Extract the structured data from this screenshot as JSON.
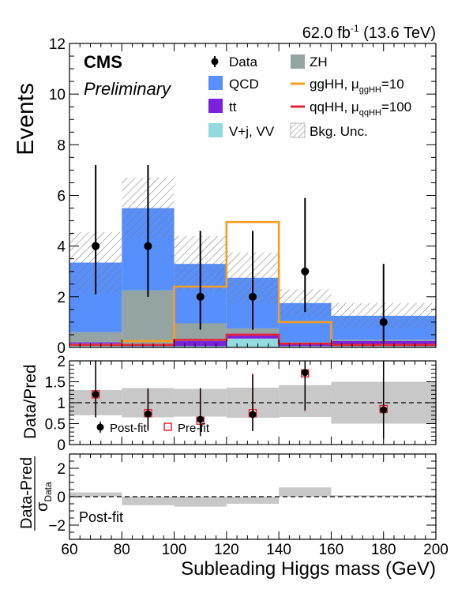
{
  "header": {
    "lumi": "62.0 fb",
    "lumi_exp": "-1",
    "energy": "(13.6 TeV)",
    "experiment": "CMS",
    "status": "Preliminary"
  },
  "colors": {
    "qcd": "#5790fc",
    "zh": "#94a4a2",
    "tt": "#7a21dd",
    "vjets": "#92dadd",
    "gghh": "#f89c20",
    "qqhh": "#e42536",
    "unc": "#9a9a9a",
    "ratio_band": "#c8c8c8"
  },
  "legend": {
    "data": "Data",
    "qcd": "QCD",
    "tt": "tt",
    "vjets": "V+j, VV",
    "zh": "ZH",
    "gghh_main": "ggHH, μ",
    "gghh_sub": "ggHH",
    "gghh_val": "=10",
    "qqhh_main": "qqHH, μ",
    "qqhh_sub": "qqHH",
    "qqhh_val": "=100",
    "unc": "Bkg. Unc."
  },
  "chart_data": [
    {
      "type": "bar",
      "panel": "main",
      "ylabel": "Events",
      "ylim": [
        0,
        12
      ],
      "yticks": [
        "0",
        "2",
        "4",
        "6",
        "8",
        "10",
        "12"
      ],
      "bin_edges": [
        60,
        80,
        100,
        120,
        140,
        160,
        200
      ],
      "stack": [
        {
          "name": "V+j, VV",
          "values": [
            0.15,
            0.05,
            0.05,
            0.35,
            0.05,
            0.05
          ]
        },
        {
          "name": "tt",
          "values": [
            0.05,
            0.05,
            0.2,
            0.2,
            0.1,
            0.2
          ]
        },
        {
          "name": "ZH",
          "values": [
            0.4,
            2.15,
            0.7,
            0.2,
            0.05,
            0.05
          ]
        },
        {
          "name": "QCD",
          "values": [
            2.75,
            3.25,
            2.35,
            2.0,
            1.55,
            0.95
          ]
        }
      ],
      "bkg_unc": [
        1.2,
        1.2,
        1.1,
        1.0,
        0.55,
        0.5
      ],
      "signals": [
        {
          "name": "ggHH",
          "values": [
            0.1,
            0.25,
            2.4,
            4.95,
            1.0,
            0.1
          ]
        },
        {
          "name": "qqHH",
          "values": [
            0.1,
            0.1,
            0.3,
            0.5,
            0.15,
            0.1
          ]
        }
      ],
      "data": {
        "x": [
          70,
          90,
          110,
          130,
          150,
          180
        ],
        "y": [
          4,
          4,
          2,
          2,
          3,
          1
        ],
        "err_lo": [
          1.9,
          2.0,
          1.3,
          1.3,
          1.6,
          0.8
        ],
        "err_hi": [
          3.2,
          3.2,
          2.6,
          2.6,
          2.9,
          2.3
        ]
      }
    },
    {
      "type": "scatter",
      "panel": "ratio",
      "ylabel": "Data/Pred",
      "ylim": [
        0,
        2
      ],
      "yticks": [
        "0",
        "0.5",
        "1",
        "1.5",
        "2"
      ],
      "reference_line": 1,
      "band": [
        [
          0.7,
          1.3
        ],
        [
          0.65,
          1.35
        ],
        [
          0.67,
          1.33
        ],
        [
          0.64,
          1.36
        ],
        [
          0.66,
          1.42
        ],
        [
          0.5,
          1.5
        ]
      ],
      "postfit": {
        "label": "Post-fit",
        "x": [
          70,
          90,
          110,
          130,
          150,
          180
        ],
        "y": [
          1.2,
          0.73,
          0.6,
          0.72,
          1.72,
          0.83
        ],
        "err_lo": [
          0.55,
          0.4,
          0.4,
          0.4,
          0.9,
          0.7
        ],
        "err_hi": [
          0.8,
          0.6,
          0.75,
          0.95,
          1.1,
          1.3
        ]
      },
      "prefit": {
        "label": "Pre-fit",
        "x": [
          70,
          90,
          110,
          130,
          150,
          180
        ],
        "y": [
          1.2,
          0.75,
          0.57,
          0.75,
          1.7,
          0.85
        ],
        "err_lo": [
          0.55,
          0.4,
          0.35,
          0.4,
          0.9,
          0.7
        ],
        "err_hi": [
          0.8,
          0.6,
          0.75,
          0.95,
          1.1,
          1.3
        ]
      }
    },
    {
      "type": "bar",
      "panel": "pull",
      "ylabel_num": "Data-Pred",
      "ylabel_den": "σ",
      "ylabel_den_sub": "Data",
      "ylim": [
        -3,
        3
      ],
      "yticks": [
        "−2",
        "0",
        "2"
      ],
      "reference_line": 0,
      "band_values": [
        0.3,
        -0.6,
        -0.7,
        -0.5,
        0.65,
        0.1
      ],
      "annotation": "Post-fit"
    }
  ],
  "xaxis": {
    "label": "Subleading Higgs mass (GeV)",
    "range": [
      60,
      200
    ],
    "ticks": [
      "60",
      "80",
      "100",
      "120",
      "140",
      "160",
      "180",
      "200"
    ]
  }
}
